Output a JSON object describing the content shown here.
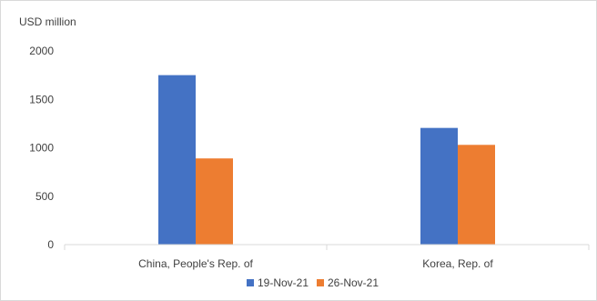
{
  "chart_data": {
    "type": "bar",
    "title": "",
    "xlabel": "",
    "ylabel": "USD million",
    "ylim": [
      0,
      2000
    ],
    "yticks": [
      0,
      500,
      1000,
      1500,
      2000
    ],
    "categories": [
      "China, People's Rep. of",
      "Korea, Rep. of"
    ],
    "series": [
      {
        "name": "19-Nov-21",
        "color": "#4472C4",
        "values": [
          1750,
          1205
        ]
      },
      {
        "name": "26-Nov-21",
        "color": "#ED7D31",
        "values": [
          890,
          1030
        ]
      }
    ],
    "grid": false,
    "legend": "bottom"
  }
}
